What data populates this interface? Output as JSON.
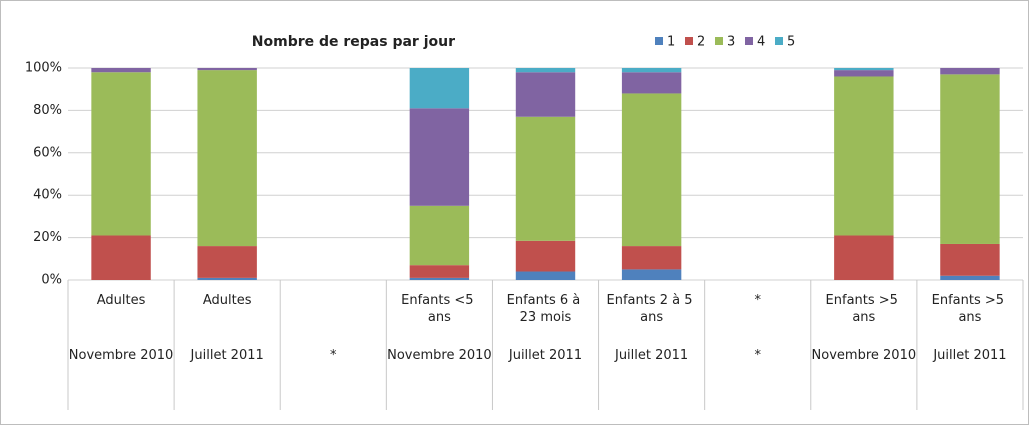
{
  "chart_data": {
    "type": "stacked_bar_percent",
    "title": "Nombre de repas par jour",
    "categories": [
      "Adultes",
      "Adultes",
      null,
      "Enfants <5 ans",
      "Enfants 6 à 23 mois",
      "Enfants 2 à 5 ans",
      "*",
      "Enfants >5 ans",
      "Enfants >5 ans"
    ],
    "subcategories": [
      "Novembre 2010",
      "Juillet 2011",
      "*",
      "Novembre 2010",
      "Juillet 2011",
      "Juillet 2011",
      "*",
      "Novembre 2010",
      "Juillet 2011"
    ],
    "series": [
      {
        "name": "1",
        "color": "#4f81bd",
        "values": [
          0,
          1,
          null,
          1,
          4,
          5,
          null,
          0,
          2
        ]
      },
      {
        "name": "2",
        "color": "#c0504d",
        "values": [
          21,
          15,
          null,
          6,
          14.5,
          11,
          null,
          21,
          15
        ]
      },
      {
        "name": "3",
        "color": "#9bbb59",
        "values": [
          77,
          83,
          null,
          28,
          58.5,
          72,
          null,
          75,
          80
        ]
      },
      {
        "name": "4",
        "color": "#8064a2",
        "values": [
          2,
          1,
          null,
          46,
          21,
          10,
          null,
          3,
          3
        ]
      },
      {
        "name": "5",
        "color": "#4bacc6",
        "values": [
          0,
          0,
          null,
          19,
          2,
          2,
          null,
          1,
          0
        ]
      }
    ],
    "ylim": [
      0,
      100
    ],
    "yticks": [
      {
        "value": 0,
        "label": "0%"
      },
      {
        "value": 20,
        "label": "20%"
      },
      {
        "value": 40,
        "label": "40%"
      },
      {
        "value": 60,
        "label": "60%"
      },
      {
        "value": 80,
        "label": "80%"
      },
      {
        "value": 100,
        "label": "100%"
      }
    ],
    "grid": true,
    "legend": "top"
  }
}
